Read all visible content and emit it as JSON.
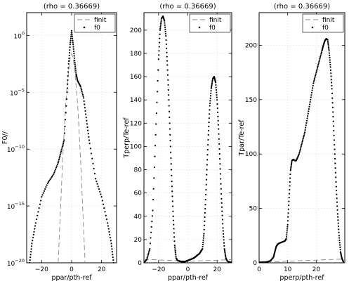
{
  "chart_data": [
    {
      "type": "line",
      "title": "(rho = 0.36669)",
      "xlabel": "ppar/pth-ref",
      "ylabel": "F0//",
      "yscale": "log",
      "xlim": [
        -30,
        30
      ],
      "ylim_exp": [
        -20,
        2
      ],
      "xticks": [
        -20,
        0,
        20
      ],
      "yticks": [
        {
          "exp": 0,
          "base": "10",
          "sup": "0"
        },
        {
          "exp": -5,
          "base": "10",
          "sup": "−5"
        },
        {
          "exp": -10,
          "base": "10",
          "sup": "−10"
        },
        {
          "exp": -15,
          "base": "10",
          "sup": "−15"
        },
        {
          "exp": -20,
          "base": "10",
          "sup": "−20"
        }
      ],
      "grid": true,
      "legend": "top-right",
      "series": [
        {
          "name": "finit",
          "style": "dashed",
          "x": [
            -9,
            -6,
            -4,
            -2,
            -1,
            0,
            1,
            2,
            4,
            6,
            9
          ],
          "y": [
            -20,
            -11,
            -6,
            -3,
            -2,
            -1.6,
            -2,
            -3,
            -6,
            -11,
            -20
          ]
        },
        {
          "name": "f0",
          "style": "dots",
          "x": [
            -28,
            -26.5,
            -24,
            -20,
            -16,
            -12,
            -9,
            -7,
            -5,
            -3,
            -2,
            -1,
            0,
            1,
            2,
            3,
            4,
            6,
            8,
            10,
            12,
            16,
            20,
            24,
            26.5,
            28
          ],
          "y": [
            -20,
            -18.3,
            -16.5,
            -14.2,
            -13,
            -12.2,
            -11.2,
            -10.2,
            -9.2,
            -5,
            -2.5,
            -0.8,
            0.4,
            -0.8,
            -2.2,
            -3.4,
            -4,
            -4.5,
            -5.5,
            -7.5,
            -9.5,
            -12.6,
            -14.2,
            -16.5,
            -18.3,
            -20
          ]
        }
      ],
      "legend_entries": [
        "finit",
        "f0"
      ]
    },
    {
      "type": "line",
      "title": "(rho = 0.36669)",
      "xlabel": "ppar/pth-ref",
      "ylabel": "Tperp/Te-ref",
      "xlim": [
        -30,
        30
      ],
      "ylim": [
        0,
        215
      ],
      "xticks": [
        -20,
        0,
        20
      ],
      "yticks": [
        0,
        20,
        40,
        60,
        80,
        100,
        120,
        140,
        160,
        180,
        200
      ],
      "grid": true,
      "legend": "top-right",
      "series": [
        {
          "name": "finit",
          "style": "dashed",
          "x": [
            -30,
            -20,
            -10,
            0,
            10,
            20,
            30
          ],
          "y": [
            3,
            2.5,
            2,
            1.5,
            1.8,
            2.2,
            2.8
          ]
        },
        {
          "name": "f0",
          "style": "dots",
          "x": [
            -30,
            -28,
            -26,
            -24,
            -22,
            -20,
            -19,
            -18,
            -17,
            -16,
            -15,
            -14,
            -13,
            -12,
            -11,
            -10,
            -9,
            -8,
            -7,
            -6,
            -5,
            -4,
            -3,
            -2,
            -1,
            0,
            1,
            2,
            3,
            4,
            5,
            6,
            7,
            8,
            9,
            10,
            11,
            12,
            13,
            14,
            15,
            16,
            17,
            18,
            19,
            20,
            21,
            22,
            23,
            24,
            25,
            26,
            27,
            28,
            29,
            30
          ],
          "y": [
            0,
            3,
            12,
            45,
            110,
            175,
            200,
            210,
            212,
            208,
            195,
            170,
            140,
            105,
            70,
            40,
            15,
            4,
            2,
            1.5,
            1.2,
            1,
            1,
            1,
            1.5,
            2,
            2.5,
            3,
            3.5,
            4,
            5,
            6,
            7,
            8,
            10,
            12,
            25,
            50,
            80,
            110,
            135,
            150,
            158,
            160,
            155,
            140,
            115,
            85,
            55,
            30,
            12,
            4,
            1.5,
            0.8,
            0.5,
            0.3
          ]
        }
      ],
      "legend_entries": [
        "finit",
        "f0"
      ]
    },
    {
      "type": "line",
      "title": "(rho = 0.36669)",
      "xlabel": "pperp/pth-ref",
      "ylabel": "Tpar/Te-ref",
      "xlim": [
        0,
        30
      ],
      "ylim": [
        0,
        230
      ],
      "xticks": [
        0,
        10,
        20
      ],
      "yticks": [
        0,
        50,
        100,
        150,
        200
      ],
      "grid": true,
      "legend": "top-right",
      "series": [
        {
          "name": "finit",
          "style": "dashed",
          "x": [
            0,
            10,
            20,
            30
          ],
          "y": [
            0.5,
            1.5,
            2.5,
            3.5
          ]
        },
        {
          "name": "f0",
          "style": "dots",
          "x": [
            0,
            1,
            2,
            3,
            4,
            5,
            5.5,
            6,
            6.5,
            7,
            8,
            9,
            9.5,
            10,
            10.5,
            11,
            11.5,
            12,
            12.5,
            13,
            14,
            15,
            16,
            17,
            18,
            19,
            20,
            21,
            22,
            22.5,
            23,
            23.5,
            24,
            24.5,
            25,
            25.5,
            26,
            26.5,
            27,
            27.5,
            28,
            28.5,
            29,
            29.5
          ],
          "y": [
            0.5,
            0.5,
            0.6,
            1,
            2,
            5,
            10,
            15,
            17,
            18,
            19,
            20,
            22,
            35,
            60,
            85,
            94,
            95,
            94,
            94,
            100,
            110,
            120,
            135,
            150,
            165,
            175,
            185,
            195,
            200,
            204,
            206,
            205,
            195,
            180,
            160,
            130,
            100,
            70,
            45,
            25,
            10,
            4,
            1
          ]
        }
      ],
      "legend_entries": [
        "finit",
        "f0"
      ]
    }
  ]
}
